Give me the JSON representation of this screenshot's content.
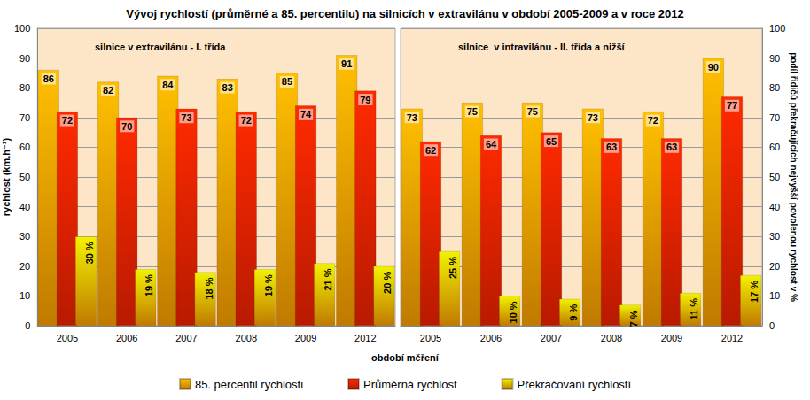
{
  "chart_data": [
    {
      "type": "bar",
      "title": "Vývoj rychlostí (průměrné a 85. percentilu) na silnicích v extravilánu v období 2005-2009 a v roce 2012",
      "subtitle": "silnice v extravilánu - I. třída",
      "xlabel": "období měření",
      "ylabel": "rychlost (km.h⁻¹)",
      "categories": [
        "2005",
        "2006",
        "2007",
        "2008",
        "2009",
        "2012"
      ],
      "ylim": [
        0,
        100
      ],
      "yticks": [
        0,
        10,
        20,
        30,
        40,
        50,
        60,
        70,
        80,
        90,
        100
      ],
      "grid": true,
      "legend": "bottom",
      "data_labels": true,
      "series": [
        {
          "name": "85. percentil rychlosti",
          "color": "#ffc000",
          "values": [
            86,
            82,
            84,
            83,
            85,
            91
          ]
        },
        {
          "name": "Průměrná rychlost",
          "color": "#ff2a00",
          "values": [
            72,
            70,
            73,
            72,
            74,
            79
          ]
        },
        {
          "name": "Překračování rychlostí",
          "color": "#f2f200",
          "values": [
            30,
            19,
            18,
            19,
            21,
            20
          ],
          "value_labels": [
            "30 %",
            "19 %",
            "18 %",
            "19 %",
            "21 %",
            "20 %"
          ]
        }
      ]
    },
    {
      "type": "bar",
      "subtitle": "silnice  v intravilánu - II. třída a nižší",
      "y2label": "podíl řidičů překračujících nejvyšší povolenou rychlost v %",
      "categories": [
        "2005",
        "2006",
        "2007",
        "2008",
        "2009",
        "2012"
      ],
      "y2lim": [
        0,
        100
      ],
      "y2ticks": [
        0,
        10,
        20,
        30,
        40,
        50,
        60,
        70,
        80,
        90,
        100
      ],
      "grid": true,
      "data_labels": true,
      "series": [
        {
          "name": "85. percentil rychlosti",
          "color": "#ffc000",
          "axis": "y2",
          "values": [
            73,
            75,
            75,
            73,
            72,
            90
          ]
        },
        {
          "name": "Průměrná rychlost",
          "color": "#ff2a00",
          "axis": "y2",
          "values": [
            62,
            64,
            65,
            63,
            63,
            77
          ]
        },
        {
          "name": "Překračování rychlostí",
          "color": "#f2f200",
          "axis": "y2",
          "values": [
            25,
            10,
            9,
            7,
            11,
            17
          ],
          "value_labels": [
            "25 %",
            "10 %",
            "9 %",
            "7 %",
            "11 %",
            "17 %"
          ]
        }
      ]
    }
  ]
}
